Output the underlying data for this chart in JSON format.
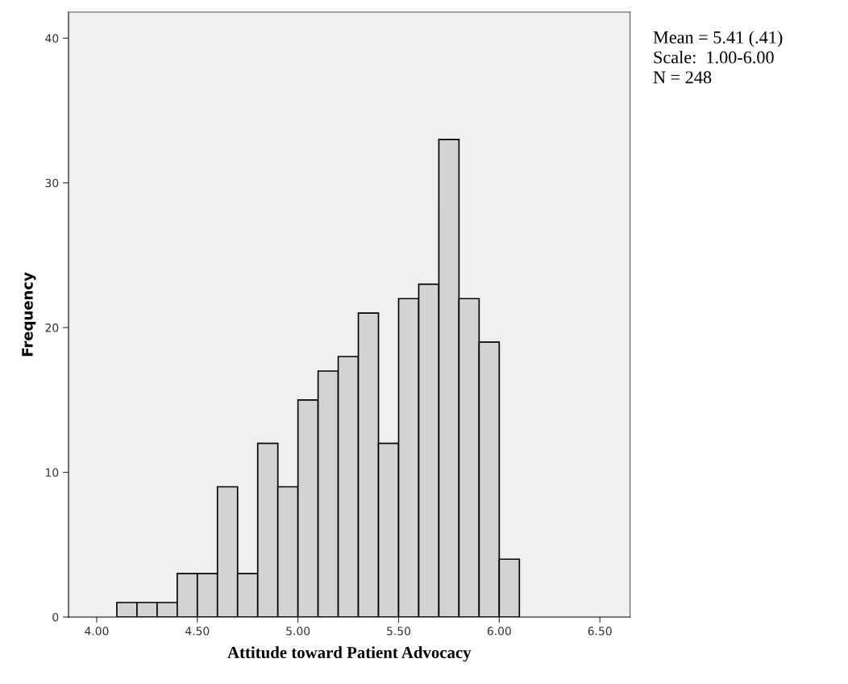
{
  "chart_data": {
    "type": "histogram",
    "xlabel": "Attitude toward Patient Advocacy",
    "ylabel": "Frequency",
    "bins": [
      4.1,
      4.2,
      4.3,
      4.4,
      4.5,
      4.6,
      4.7,
      4.8,
      4.9,
      5.0,
      5.1,
      5.2,
      5.3,
      5.4,
      5.5,
      5.6,
      5.7,
      5.8,
      5.9,
      6.0,
      6.1
    ],
    "values": [
      1,
      1,
      1,
      3,
      3,
      9,
      3,
      12,
      9,
      15,
      17,
      18,
      21,
      12,
      22,
      23,
      33,
      22,
      19,
      4
    ],
    "color": "#d3d3d3",
    "xlim": [
      3.86,
      6.65
    ],
    "xticks": [
      {
        "value": 4,
        "label": "4.00"
      },
      {
        "value": 4.5,
        "label": "4.50"
      },
      {
        "value": 5,
        "label": "5.00"
      },
      {
        "value": 5.5,
        "label": "5.50"
      },
      {
        "value": 6,
        "label": "6.00"
      },
      {
        "value": 6.5,
        "label": "6.50"
      }
    ],
    "ylim": [
      0,
      41.8
    ],
    "yticks": [
      0,
      10,
      20,
      30,
      40
    ],
    "grid": false,
    "annotations": [
      "Mean = 5.41 (.41)\nScale:  1.00-6.00\nN = 248"
    ]
  }
}
